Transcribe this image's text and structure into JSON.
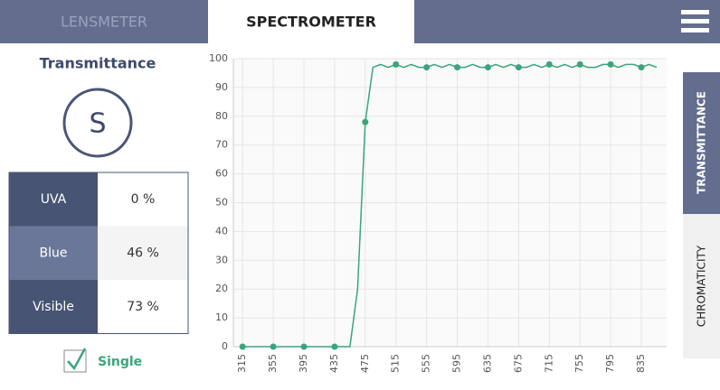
{
  "tabs": [
    "LENSMETER",
    "SPECTROMETER"
  ],
  "panel": {
    "title": "Transmittance",
    "icon_letter": "S",
    "table": {
      "rows": [
        [
          "UVA",
          "0 %"
        ],
        [
          "Blue",
          "46 %"
        ],
        [
          "Visible",
          "73 %"
        ]
      ]
    },
    "checkbox": {
      "label": "Single",
      "checked": true
    }
  },
  "side_tabs": [
    "TRANSMITTANCE",
    "CHROMATICITY"
  ],
  "chart_data": {
    "type": "line",
    "x": [
      315,
      325,
      335,
      345,
      355,
      365,
      375,
      385,
      395,
      405,
      415,
      425,
      435,
      445,
      455,
      465,
      475,
      485,
      495,
      505,
      515,
      525,
      535,
      545,
      555,
      565,
      575,
      585,
      595,
      605,
      615,
      625,
      635,
      645,
      655,
      665,
      675,
      685,
      695,
      705,
      715,
      725,
      735,
      745,
      755,
      765,
      775,
      785,
      795,
      805,
      815,
      825,
      835,
      845,
      855
    ],
    "series": [
      {
        "color": "#3aa57a",
        "values": [
          0,
          0,
          0,
          0,
          0,
          0,
          0,
          0,
          0,
          0,
          0,
          0,
          0,
          0,
          0,
          20,
          78,
          97,
          98,
          97,
          98,
          97,
          98,
          97,
          97,
          98,
          97,
          98,
          97,
          97,
          98,
          97,
          97,
          98,
          97,
          98,
          97,
          97,
          98,
          97,
          98,
          97,
          98,
          97,
          98,
          97,
          97,
          98,
          98,
          97,
          98,
          98,
          97,
          98,
          97
        ]
      }
    ],
    "xlim": [
      303,
      868
    ],
    "ylim": [
      0,
      100
    ],
    "xticks": [
      315,
      355,
      395,
      435,
      475,
      515,
      555,
      595,
      635,
      675,
      715,
      755,
      795,
      835
    ],
    "yticks": [
      0,
      10,
      20,
      30,
      40,
      50,
      60,
      70,
      80,
      90,
      100
    ],
    "grid": true
  }
}
